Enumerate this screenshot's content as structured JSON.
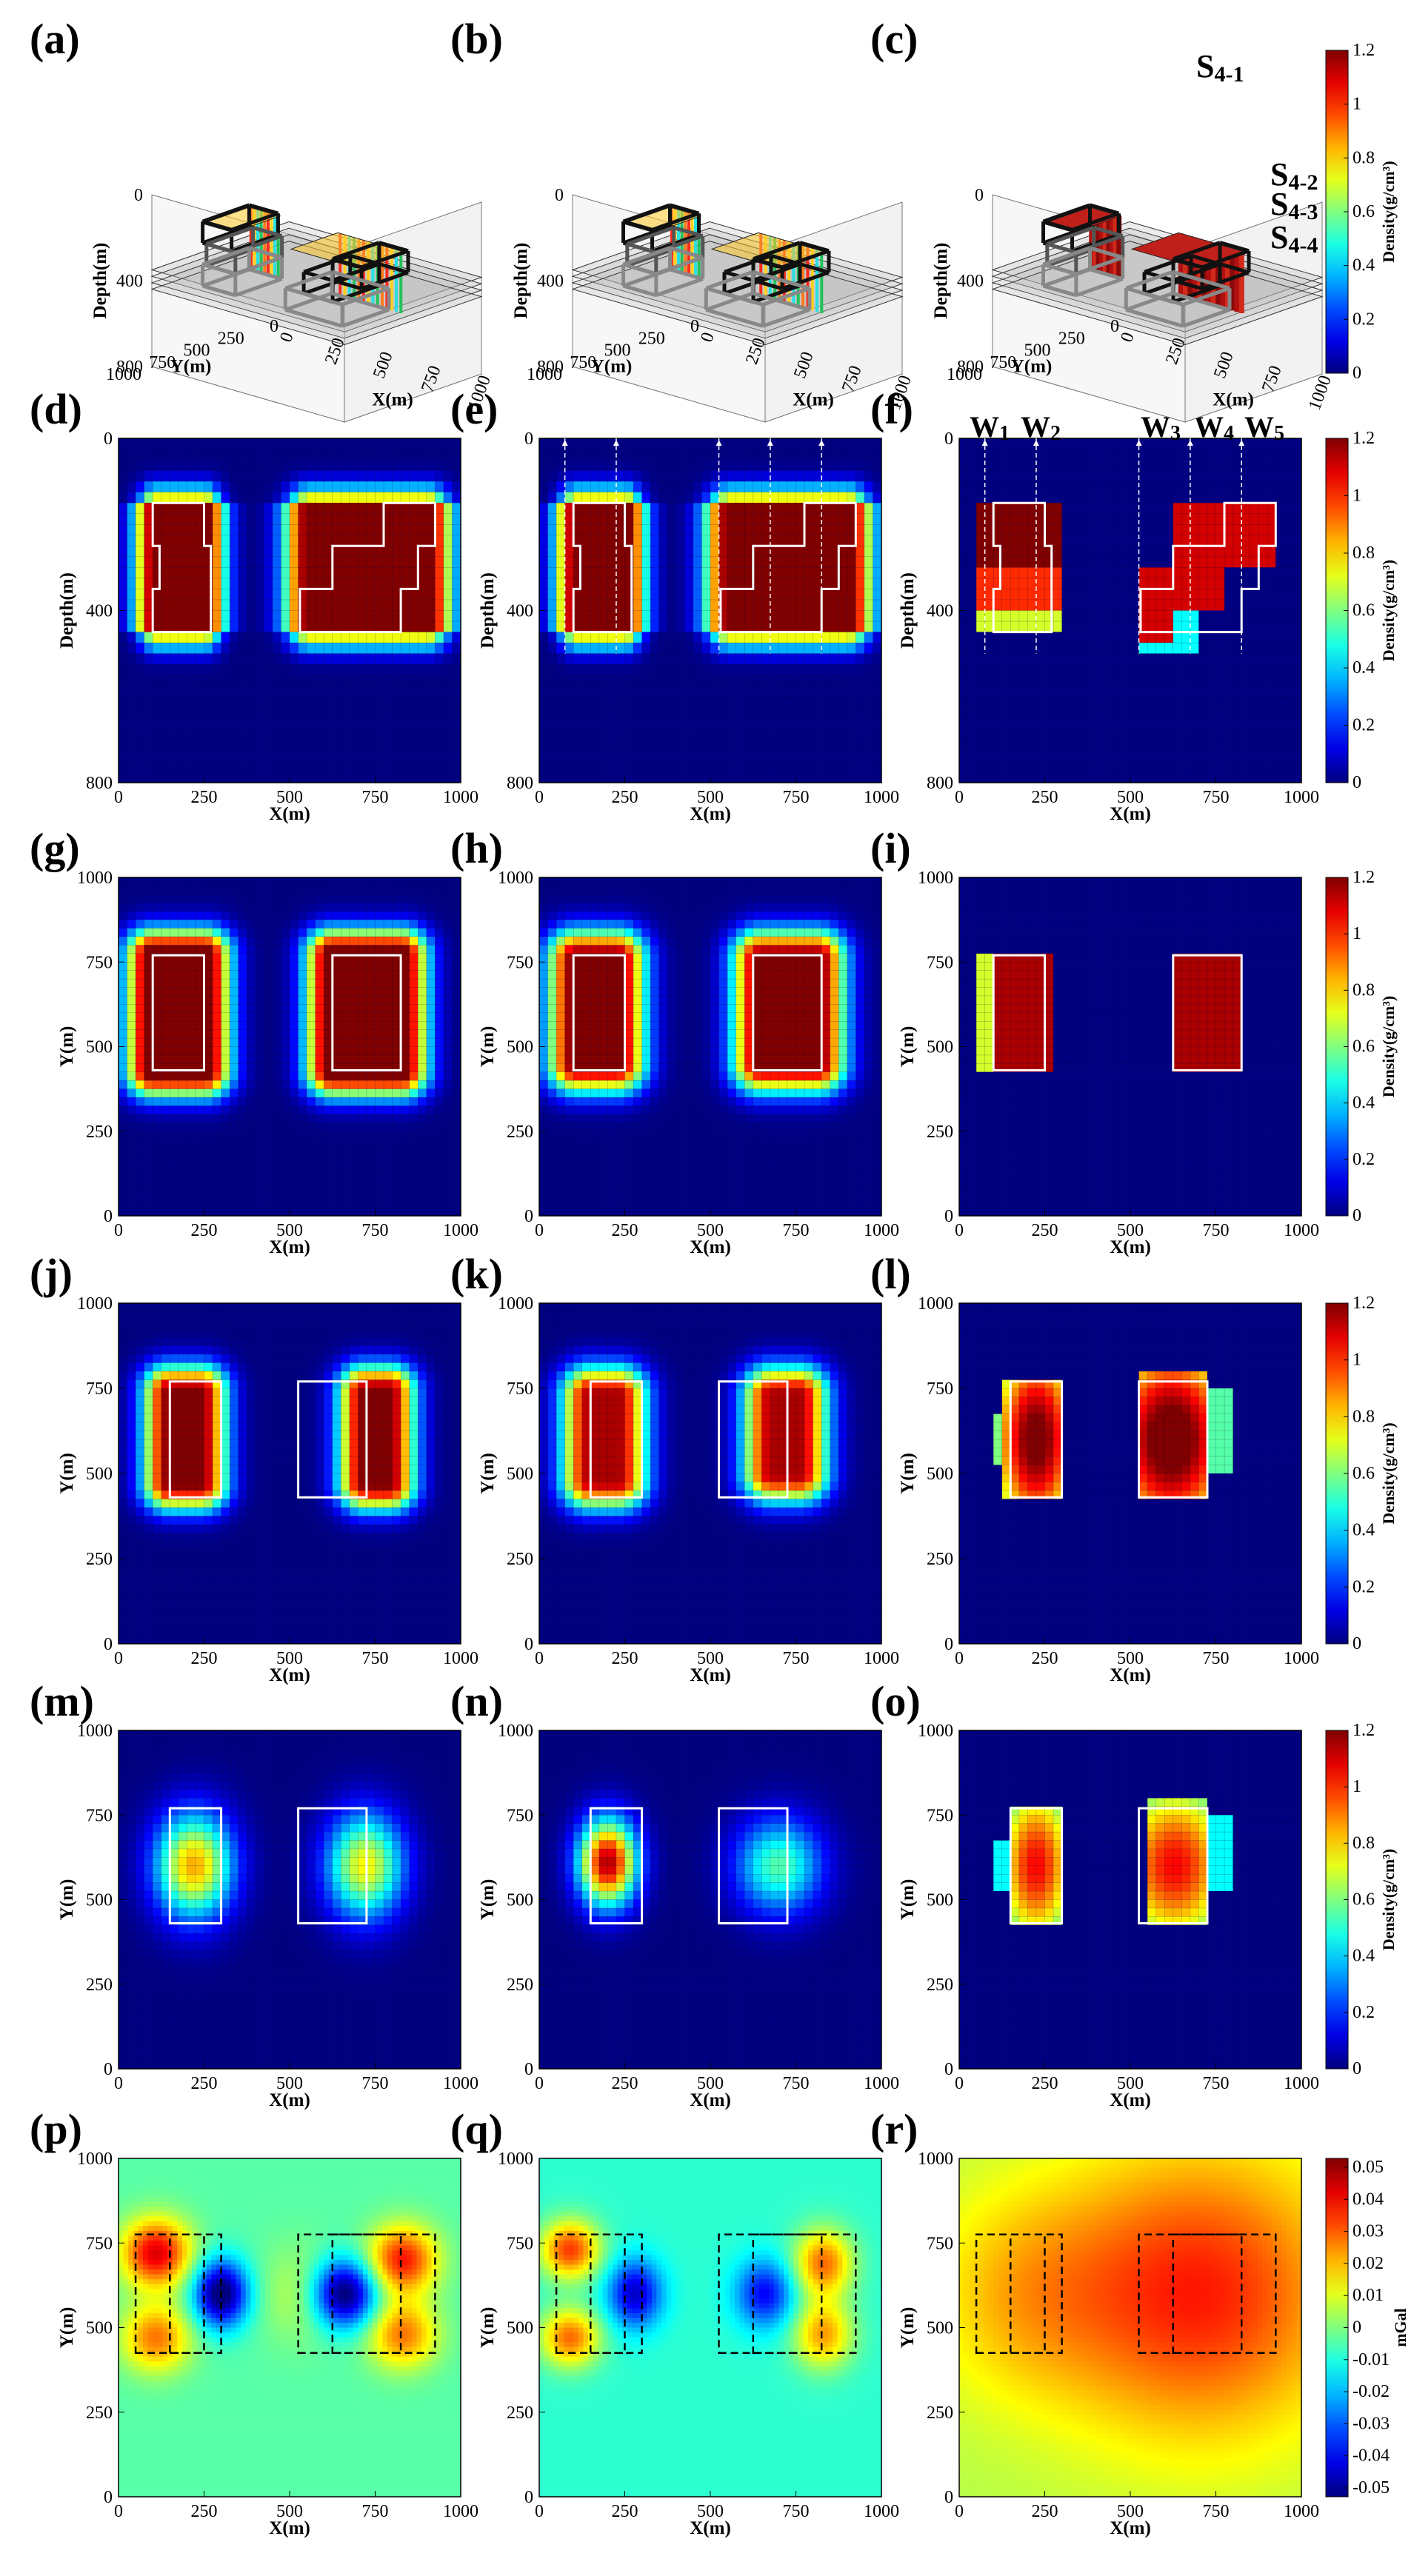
{
  "panel_labels": [
    "(a)",
    "(b)",
    "(c)",
    "(d)",
    "(e)",
    "(f)",
    "(g)",
    "(h)",
    "(i)",
    "(j)",
    "(k)",
    "(l)",
    "(m)",
    "(n)",
    "(o)",
    "(p)",
    "(q)",
    "(r)"
  ],
  "colorbar_density": {
    "label": "Density(g/cm³)",
    "min": 0,
    "max": 1.2,
    "ticks": [
      "0",
      "0.2",
      "0.4",
      "0.6",
      "0.8",
      "1",
      "1.2"
    ]
  },
  "colorbar_gravity": {
    "label": "mGal",
    "min": -0.05,
    "max": 0.05,
    "ticks": [
      "0.05",
      "0.04",
      "0.03",
      "0.02",
      "0.01",
      "0",
      "-0.01",
      "-0.02",
      "-0.03",
      "-0.04",
      "-0.05"
    ]
  },
  "surface_labels": [
    "S4-1",
    "S4-2",
    "S4-3",
    "S4-4"
  ],
  "well_labels": [
    "W1",
    "W2",
    "W3",
    "W4",
    "W5"
  ],
  "axis_3d": {
    "z_label": "Depth(m)",
    "z_ticks": [
      "0",
      "400",
      "800"
    ],
    "y_label": "Y(m)",
    "y_ticks": [
      "0",
      "250",
      "500",
      "750",
      "1000"
    ],
    "x_label": "X(m)",
    "x_ticks": [
      "0",
      "250",
      "500",
      "750",
      "1000"
    ]
  },
  "chart_data": [
    {
      "type": "scatter",
      "panel": "a",
      "title": "",
      "description": "3D voxel view",
      "zlabel": "Depth(m)",
      "xlabel": "X(m)",
      "ylabel": "Y(m)"
    },
    {
      "type": "scatter",
      "panel": "b",
      "title": "",
      "zlabel": "Depth(m)",
      "xlabel": "X(m)",
      "ylabel": "Y(m)"
    },
    {
      "type": "scatter",
      "panel": "c",
      "title": "",
      "zlabel": "Depth(m)",
      "xlabel": "X(m)",
      "ylabel": "Y(m)"
    },
    {
      "type": "heatmap",
      "panel": "d",
      "xlabel": "X(m)",
      "ylabel": "Depth(m)",
      "xlim": [
        0,
        1000
      ],
      "ylim": [
        800,
        0
      ],
      "bodies": [
        {
          "x": [
            100,
            250
          ],
          "z": [
            150,
            450
          ],
          "peak": 1.2
        },
        {
          "x": [
            550,
            900
          ],
          "z": [
            150,
            450
          ],
          "peak": 1.2
        }
      ]
    },
    {
      "type": "heatmap",
      "panel": "e",
      "xlabel": "X(m)",
      "ylabel": "Depth(m)",
      "xlim": [
        0,
        1000
      ],
      "ylim": [
        800,
        0
      ],
      "wells_x": [
        75,
        225,
        525,
        675,
        825
      ]
    },
    {
      "type": "heatmap",
      "panel": "f",
      "xlabel": "X(m)",
      "ylabel": "Depth(m)",
      "xlim": [
        0,
        1000
      ],
      "ylim": [
        800,
        0
      ],
      "wells_x": [
        75,
        225,
        525,
        675,
        825
      ]
    },
    {
      "type": "heatmap",
      "panel": "g",
      "xlabel": "X(m)",
      "ylabel": "Y(m)",
      "xlim": [
        0,
        1000
      ],
      "ylim": [
        0,
        1000
      ],
      "rects": [
        {
          "x": [
            100,
            250
          ],
          "y": [
            425,
            775
          ]
        },
        {
          "x": [
            625,
            825
          ],
          "y": [
            425,
            775
          ]
        }
      ]
    },
    {
      "type": "heatmap",
      "panel": "h",
      "xlabel": "X(m)",
      "ylabel": "Y(m)",
      "xlim": [
        0,
        1000
      ],
      "ylim": [
        0,
        1000
      ]
    },
    {
      "type": "heatmap",
      "panel": "i",
      "xlabel": "X(m)",
      "ylabel": "Y(m)",
      "xlim": [
        0,
        1000
      ],
      "ylim": [
        0,
        1000
      ]
    },
    {
      "type": "heatmap",
      "panel": "j",
      "xlabel": "X(m)",
      "ylabel": "Y(m)",
      "xlim": [
        0,
        1000
      ],
      "ylim": [
        0,
        1000
      ],
      "rects": [
        {
          "x": [
            150,
            300
          ],
          "y": [
            425,
            775
          ]
        },
        {
          "x": [
            525,
            725
          ],
          "y": [
            425,
            775
          ]
        }
      ]
    },
    {
      "type": "heatmap",
      "panel": "k",
      "xlabel": "X(m)",
      "ylabel": "Y(m)",
      "xlim": [
        0,
        1000
      ],
      "ylim": [
        0,
        1000
      ]
    },
    {
      "type": "heatmap",
      "panel": "l",
      "xlabel": "X(m)",
      "ylabel": "Y(m)",
      "xlim": [
        0,
        1000
      ],
      "ylim": [
        0,
        1000
      ]
    },
    {
      "type": "heatmap",
      "panel": "m",
      "xlabel": "X(m)",
      "ylabel": "Y(m)",
      "xlim": [
        0,
        1000
      ],
      "ylim": [
        0,
        1000
      ]
    },
    {
      "type": "heatmap",
      "panel": "n",
      "xlabel": "X(m)",
      "ylabel": "Y(m)",
      "xlim": [
        0,
        1000
      ],
      "ylim": [
        0,
        1000
      ]
    },
    {
      "type": "heatmap",
      "panel": "o",
      "xlabel": "X(m)",
      "ylabel": "Y(m)",
      "xlim": [
        0,
        1000
      ],
      "ylim": [
        0,
        1000
      ]
    },
    {
      "type": "heatmap",
      "panel": "p",
      "xlabel": "X(m)",
      "ylabel": "Y(m)",
      "xlim": [
        0,
        1000
      ],
      "ylim": [
        0,
        1000
      ],
      "unit": "mGal"
    },
    {
      "type": "heatmap",
      "panel": "q",
      "xlabel": "X(m)",
      "ylabel": "Y(m)",
      "xlim": [
        0,
        1000
      ],
      "ylim": [
        0,
        1000
      ],
      "unit": "mGal"
    },
    {
      "type": "heatmap",
      "panel": "r",
      "xlabel": "X(m)",
      "ylabel": "Y(m)",
      "xlim": [
        0,
        1000
      ],
      "ylim": [
        0,
        1000
      ],
      "unit": "mGal"
    }
  ]
}
